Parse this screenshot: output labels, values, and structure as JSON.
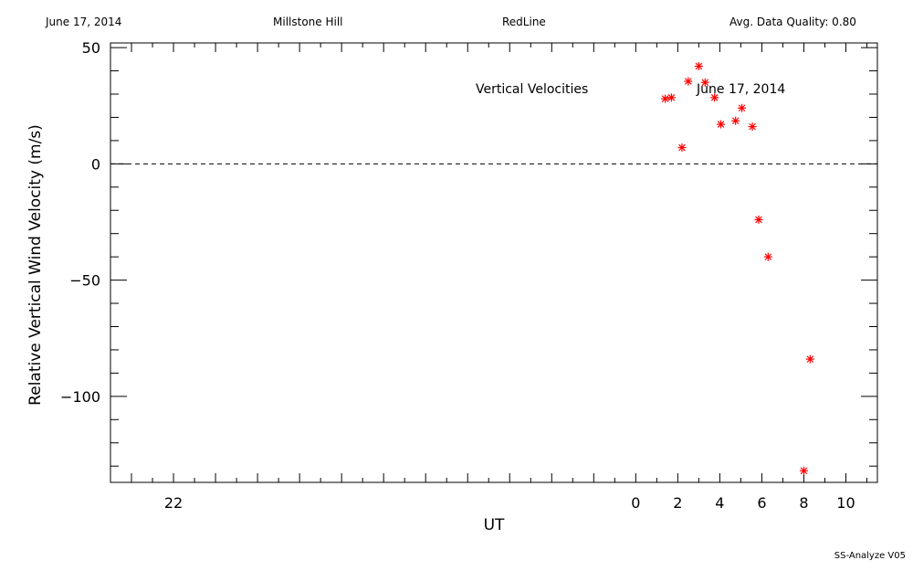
{
  "header": {
    "date": "June 17, 2014",
    "site": "Millstone Hill",
    "instrument": "RedLine",
    "quality": "Avg. Data Quality: 0.80"
  },
  "footer": {
    "version": "SS-Analyze V05"
  },
  "chart_data": {
    "type": "scatter",
    "xlabel": "UT",
    "ylabel": "Relative Vertical Wind Velocity (m/s)",
    "xlim": [
      -25,
      11.5
    ],
    "ylim": [
      -137,
      52
    ],
    "x_ticks": [
      -22,
      0,
      2,
      4,
      6,
      8,
      10
    ],
    "x_tick_labels": [
      "22",
      "0",
      "2",
      "4",
      "6",
      "8",
      "10"
    ],
    "y_ticks": [
      50,
      0,
      -50,
      -100
    ],
    "y_tick_labels": [
      "50",
      "0",
      "−50",
      "−100"
    ],
    "annotation_left": "Vertical Velocities",
    "annotation_right": "June 17, 2014",
    "zero_line": "dashed",
    "marker_color": "#ff0000",
    "series": [
      {
        "x": [
          1.4,
          1.7,
          2.2,
          2.5,
          3.0,
          3.3,
          3.75,
          4.05,
          4.75,
          5.05,
          5.55,
          5.85,
          6.3,
          8.0,
          8.3
        ],
        "y": [
          28,
          28.5,
          7,
          35.5,
          42,
          35,
          28.5,
          17,
          18.5,
          24,
          16,
          -24,
          -40,
          -132,
          -84
        ]
      }
    ]
  }
}
